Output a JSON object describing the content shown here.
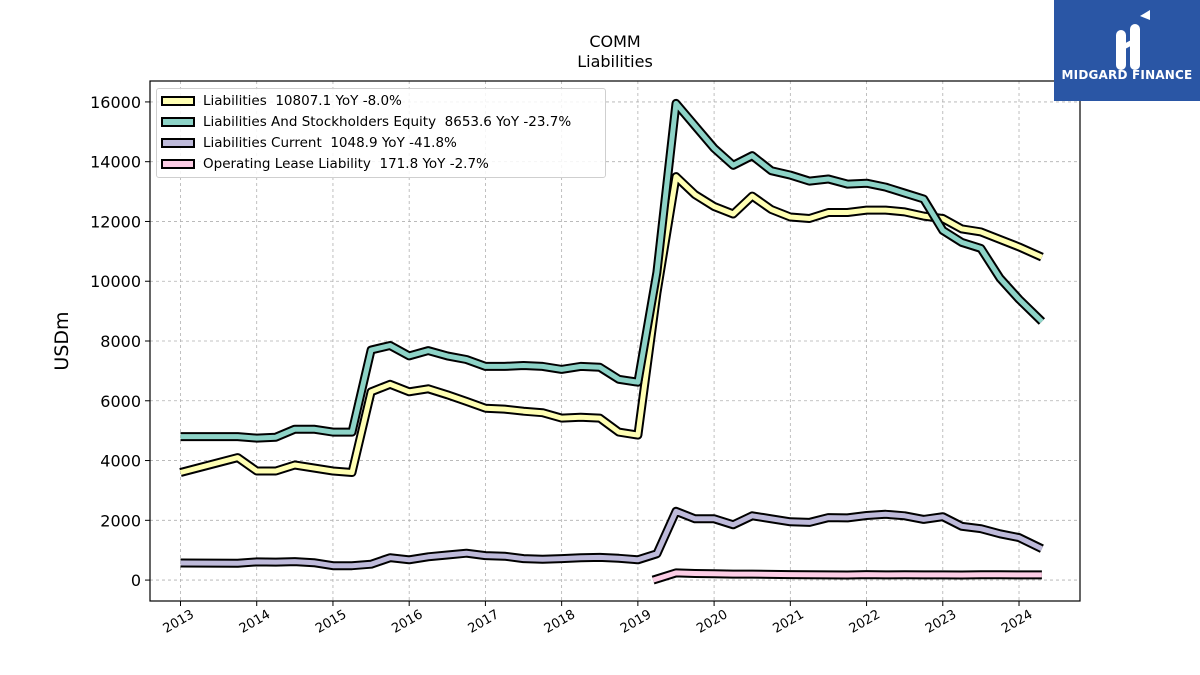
{
  "title": "COMM",
  "subtitle": "Liabilities",
  "logo": {
    "text": "MIDGARD FINANCE",
    "bg_color": "#2a56a5"
  },
  "chart_data": {
    "type": "line",
    "ylabel": "USDm",
    "xlabel": "",
    "xlim": [
      2012.6,
      2024.8
    ],
    "ylim": [
      -700,
      16700
    ],
    "yticks": [
      0,
      2000,
      4000,
      6000,
      8000,
      10000,
      12000,
      14000,
      16000
    ],
    "xticks": [
      2013,
      2014,
      2015,
      2016,
      2017,
      2018,
      2019,
      2020,
      2021,
      2022,
      2023,
      2024
    ],
    "grid": true,
    "legend_position": "top-left",
    "series": [
      {
        "name": "Liabilities",
        "legend": "Liabilities  10807.1 YoY -8.0%",
        "color": "#ffffb3",
        "x": [
          2013.0,
          2013.75,
          2014.0,
          2014.25,
          2014.5,
          2014.75,
          2015.0,
          2015.25,
          2015.5,
          2015.75,
          2016.0,
          2016.25,
          2016.5,
          2016.75,
          2017.0,
          2017.25,
          2017.5,
          2017.75,
          2018.0,
          2018.25,
          2018.5,
          2018.75,
          2019.0,
          2019.25,
          2019.5,
          2019.75,
          2020.0,
          2020.25,
          2020.5,
          2020.75,
          2021.0,
          2021.25,
          2021.5,
          2021.75,
          2022.0,
          2022.25,
          2022.5,
          2022.75,
          2023.0,
          2023.25,
          2023.5,
          2023.75,
          2024.0,
          2024.3
        ],
        "values": [
          3600,
          4100,
          3650,
          3650,
          3850,
          3750,
          3650,
          3600,
          6300,
          6550,
          6300,
          6400,
          6200,
          5980,
          5750,
          5720,
          5650,
          5600,
          5420,
          5450,
          5420,
          4950,
          4850,
          9600,
          13500,
          12900,
          12500,
          12250,
          12850,
          12400,
          12150,
          12100,
          12300,
          12300,
          12380,
          12380,
          12320,
          12180,
          12100,
          11750,
          11650,
          11400,
          11150,
          10807.1
        ]
      },
      {
        "name": "Liabilities And Stockholders Equity",
        "legend": "Liabilities And Stockholders Equity  8653.6 YoY -23.7%",
        "color": "#8dd3c7",
        "x": [
          2013.0,
          2013.75,
          2014.0,
          2014.25,
          2014.5,
          2014.75,
          2015.0,
          2015.25,
          2015.5,
          2015.75,
          2016.0,
          2016.25,
          2016.5,
          2016.75,
          2017.0,
          2017.25,
          2017.5,
          2017.75,
          2018.0,
          2018.25,
          2018.5,
          2018.75,
          2019.0,
          2019.25,
          2019.5,
          2019.75,
          2020.0,
          2020.25,
          2020.5,
          2020.75,
          2021.0,
          2021.25,
          2021.5,
          2021.75,
          2022.0,
          2022.25,
          2022.5,
          2022.75,
          2023.0,
          2023.25,
          2023.5,
          2023.75,
          2024.0,
          2024.3
        ],
        "values": [
          4800,
          4800,
          4750,
          4780,
          5050,
          5050,
          4950,
          4950,
          7700,
          7850,
          7500,
          7680,
          7500,
          7380,
          7150,
          7150,
          7180,
          7150,
          7050,
          7150,
          7120,
          6720,
          6620,
          10300,
          15950,
          15200,
          14450,
          13880,
          14200,
          13700,
          13550,
          13350,
          13420,
          13250,
          13280,
          13150,
          12950,
          12750,
          11700,
          11300,
          11100,
          10100,
          9400,
          8653.6
        ]
      },
      {
        "name": "Liabilities Current",
        "legend": "Liabilities Current  1048.9 YoY -41.8%",
        "color": "#bebada",
        "x": [
          2013.0,
          2013.75,
          2014.0,
          2014.25,
          2014.5,
          2014.75,
          2015.0,
          2015.25,
          2015.5,
          2015.75,
          2016.0,
          2016.25,
          2016.5,
          2016.75,
          2017.0,
          2017.25,
          2017.5,
          2017.75,
          2018.0,
          2018.25,
          2018.5,
          2018.75,
          2019.0,
          2019.25,
          2019.5,
          2019.75,
          2020.0,
          2020.25,
          2020.5,
          2020.75,
          2021.0,
          2021.25,
          2021.5,
          2021.75,
          2022.0,
          2022.25,
          2022.5,
          2022.75,
          2023.0,
          2023.25,
          2023.5,
          2023.75,
          2024.0,
          2024.3
        ],
        "values": [
          570,
          560,
          610,
          600,
          620,
          580,
          480,
          480,
          530,
          750,
          680,
          780,
          840,
          900,
          820,
          800,
          720,
          700,
          720,
          750,
          760,
          730,
          680,
          880,
          2300,
          2050,
          2050,
          1850,
          2150,
          2050,
          1950,
          1930,
          2090,
          2080,
          2160,
          2200,
          2150,
          2030,
          2120,
          1800,
          1720,
          1550,
          1420,
          1048.9
        ]
      },
      {
        "name": "Operating Lease Liability",
        "legend": "Operating Lease Liability  171.8 YoY -2.7%",
        "color": "#fccde5",
        "x": [
          2019.2,
          2019.5,
          2019.75,
          2020.0,
          2020.25,
          2020.5,
          2020.75,
          2021.0,
          2021.25,
          2021.5,
          2021.75,
          2022.0,
          2022.25,
          2022.5,
          2022.75,
          2023.0,
          2023.25,
          2023.5,
          2023.75,
          2024.0,
          2024.3
        ],
        "values": [
          0,
          240,
          220,
          210,
          200,
          200,
          190,
          185,
          180,
          175,
          170,
          185,
          175,
          180,
          175,
          175,
          170,
          180,
          178,
          175,
          171.8
        ]
      }
    ]
  }
}
